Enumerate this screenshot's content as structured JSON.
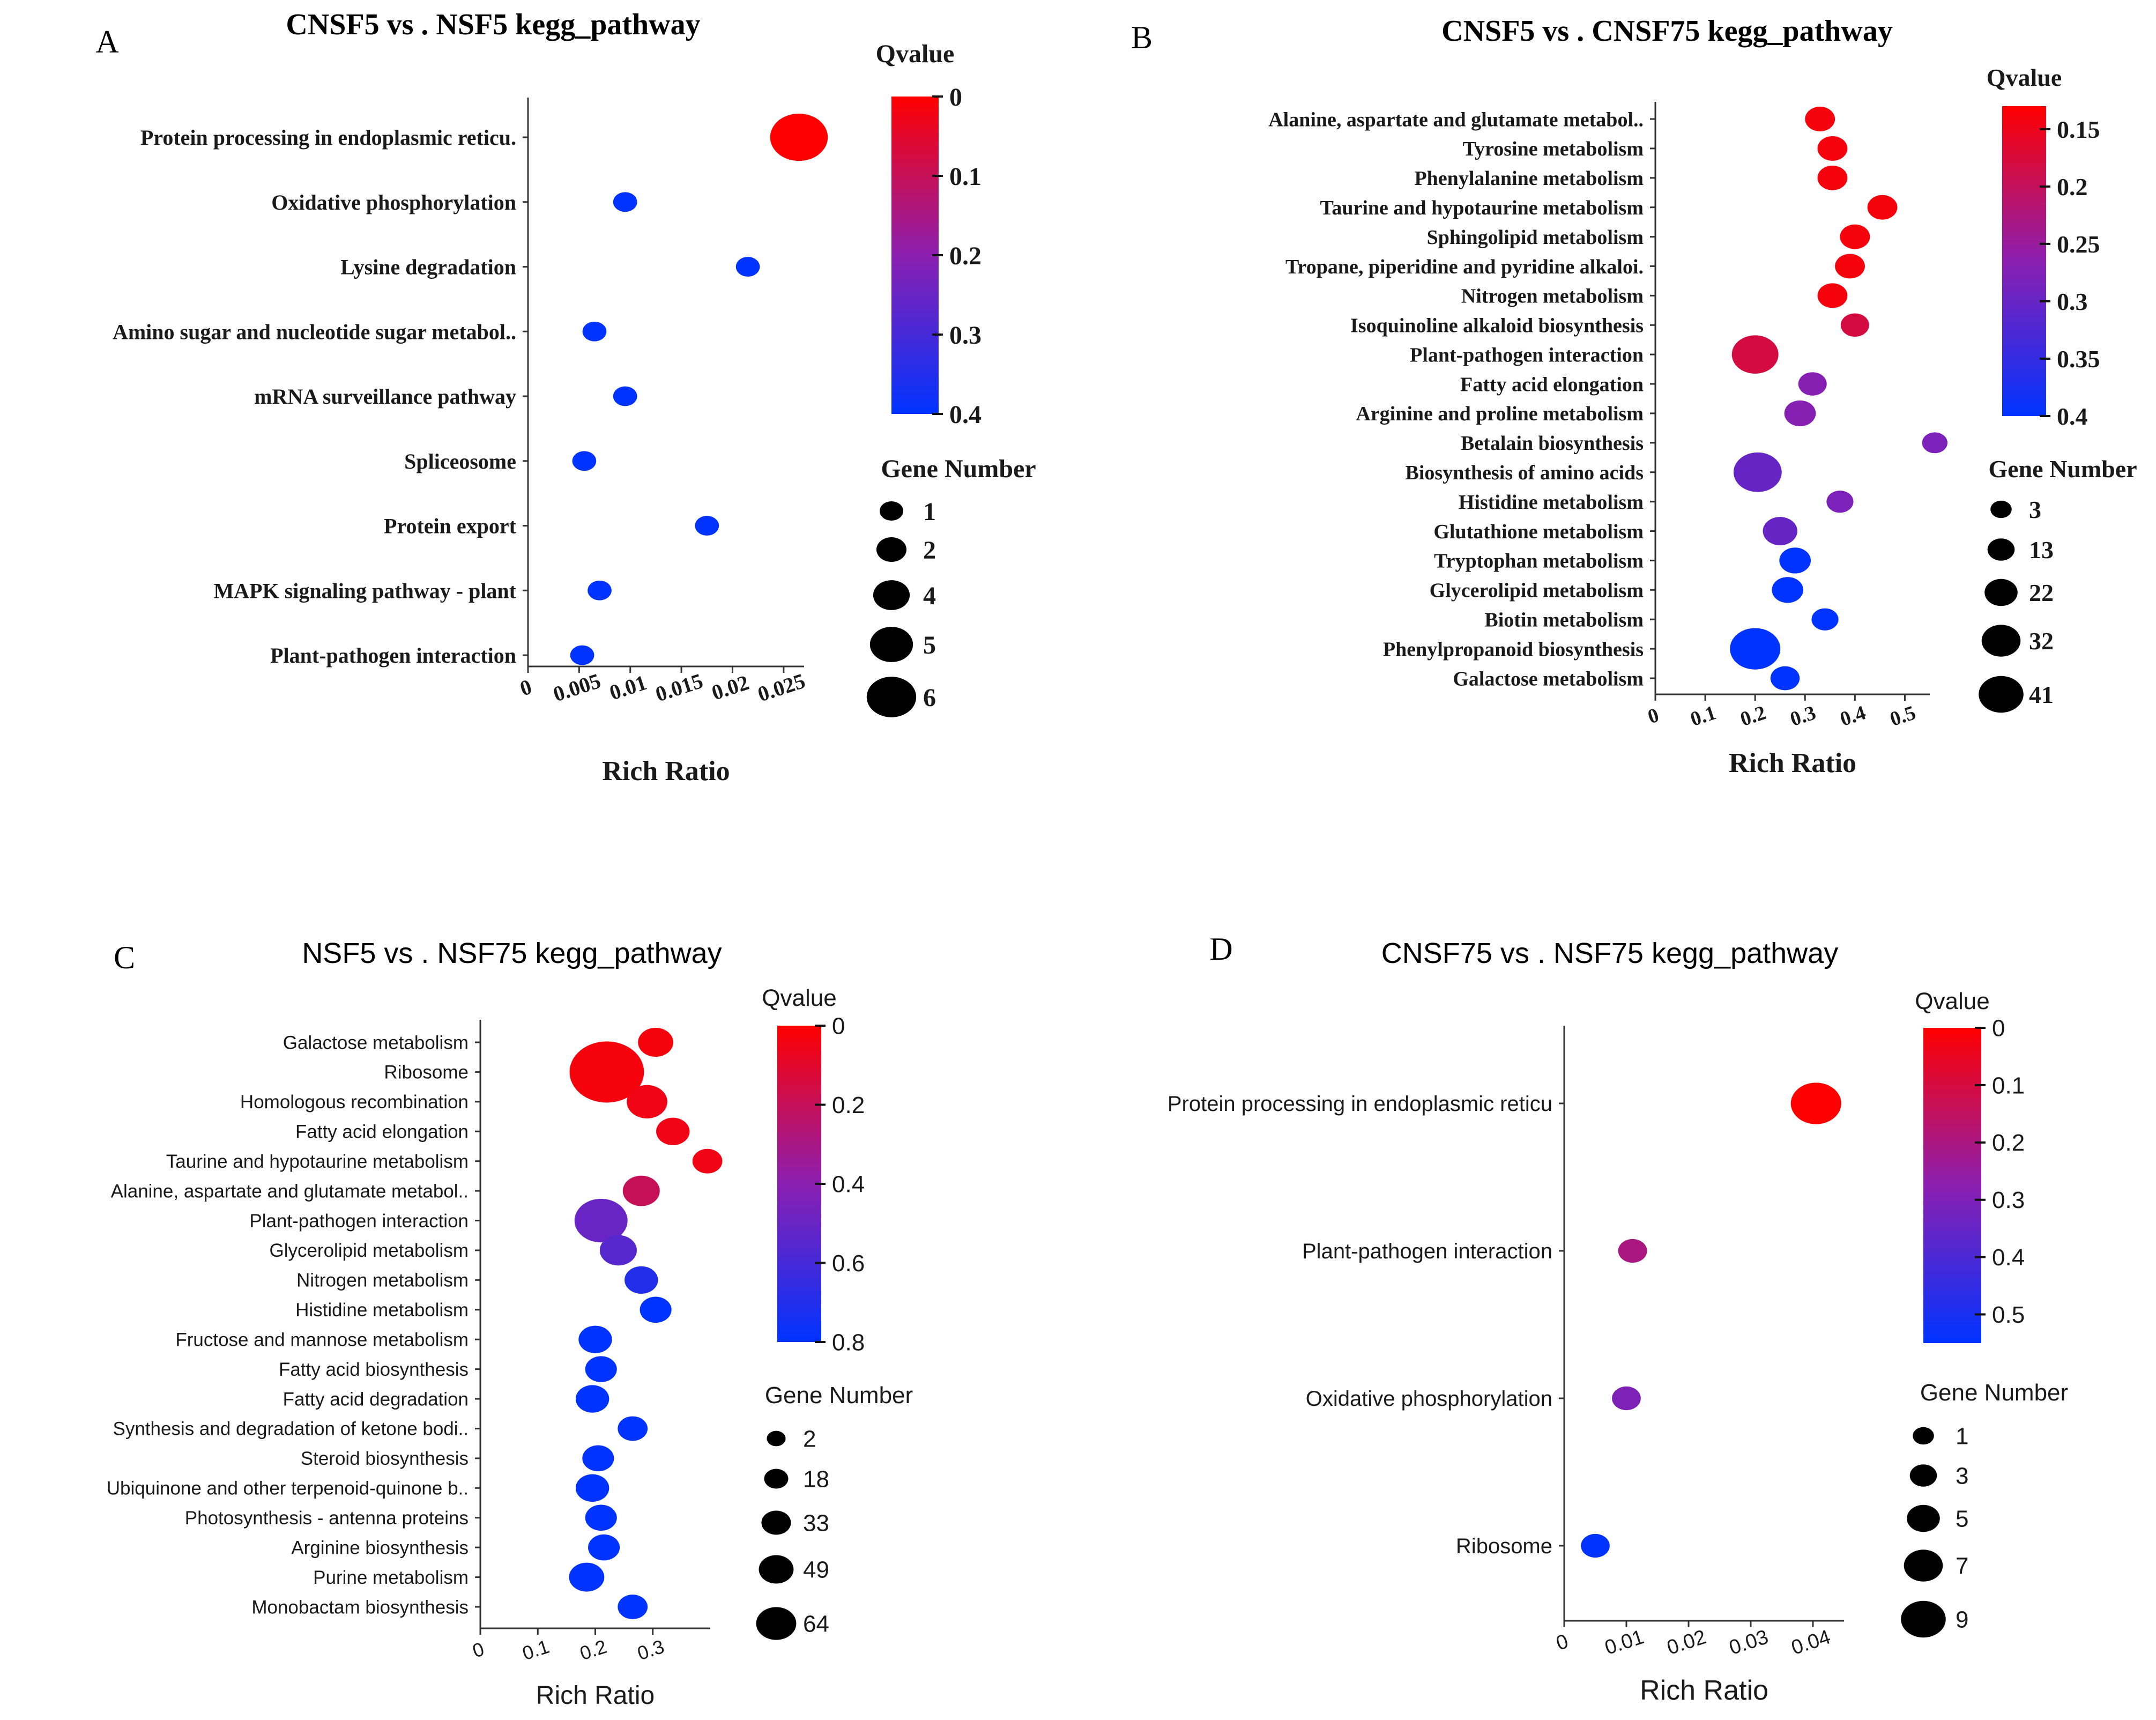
{
  "chart_data": [
    {
      "type": "scatter",
      "panel_letter": "A",
      "title": "CNSF5  vs . NSF5 kegg_pathway",
      "xlabel": "Rich Ratio",
      "ylabel": "",
      "xlim": [
        0,
        0.027
      ],
      "xticks": [
        "0",
        "0.005",
        "0.01",
        "0.015",
        "0.02",
        "0.025"
      ],
      "xtick_values": [
        0,
        0.005,
        0.01,
        0.015,
        0.02,
        0.025
      ],
      "categories": [
        "Protein processing in endoplasmic reticu.",
        "Oxidative phosphorylation",
        "Lysine degradation",
        "Amino sugar and nucleotide sugar metabol..",
        "mRNA surveillance pathway",
        "Spliceosome",
        "Protein export",
        "MAPK signaling pathway - plant",
        "Plant-pathogen interaction"
      ],
      "rich_ratio": [
        0.0265,
        0.0095,
        0.0215,
        0.0065,
        0.0095,
        0.0055,
        0.0175,
        0.007,
        0.0053
      ],
      "qvalue": [
        0.0,
        0.4,
        0.4,
        0.4,
        0.4,
        0.4,
        0.4,
        0.4,
        0.4
      ],
      "gene_number": [
        6,
        1,
        1,
        1,
        1,
        1,
        1,
        1,
        1
      ],
      "colorbar": {
        "title": "Qvalue",
        "ticks": [
          "0",
          "0.1",
          "0.2",
          "0.3",
          "0.4"
        ],
        "tick_values": [
          0,
          0.1,
          0.2,
          0.3,
          0.4
        ],
        "range": [
          0,
          0.4
        ],
        "low_color": "#ff0000",
        "mid_color": "#8b1fb0",
        "high_color": "#0033ff"
      },
      "size_legend": {
        "title": "Gene Number",
        "labels": [
          "1",
          "2",
          "4",
          "5",
          "6"
        ],
        "values": [
          1,
          2,
          4,
          5,
          6
        ]
      }
    },
    {
      "type": "scatter",
      "panel_letter": "B",
      "title": "CNSF5  vs . CNSF75 kegg_pathway",
      "xlabel": "Rich Ratio",
      "ylabel": "",
      "xlim": [
        0,
        0.55
      ],
      "xticks": [
        "0",
        "0.1",
        "0.2",
        "0.3",
        "0.4",
        "0.5"
      ],
      "xtick_values": [
        0,
        0.1,
        0.2,
        0.3,
        0.4,
        0.5
      ],
      "categories": [
        "Alanine, aspartate and glutamate metabol..",
        "Tyrosine metabolism",
        "Phenylalanine metabolism",
        "Taurine and hypotaurine metabolism",
        "Sphingolipid metabolism",
        "Tropane, piperidine and pyridine alkaloi.",
        "Nitrogen metabolism",
        "Isoquinoline alkaloid biosynthesis",
        "Plant-pathogen interaction",
        "Fatty acid elongation",
        "Arginine and proline metabolism",
        "Betalain biosynthesis",
        "Biosynthesis of amino acids",
        "Histidine metabolism",
        "Glutathione metabolism",
        "Tryptophan metabolism",
        "Glycerolipid metabolism",
        "Biotin metabolism",
        "Phenylpropanoid biosynthesis",
        "Galactose metabolism"
      ],
      "rich_ratio": [
        0.33,
        0.355,
        0.355,
        0.455,
        0.4,
        0.39,
        0.355,
        0.4,
        0.2,
        0.315,
        0.29,
        0.56,
        0.205,
        0.37,
        0.25,
        0.28,
        0.265,
        0.34,
        0.2,
        0.26
      ],
      "qvalue": [
        0.14,
        0.14,
        0.14,
        0.14,
        0.14,
        0.14,
        0.14,
        0.18,
        0.18,
        0.27,
        0.27,
        0.28,
        0.3,
        0.28,
        0.3,
        0.4,
        0.4,
        0.4,
        0.4,
        0.4
      ],
      "gene_number": [
        14,
        14,
        14,
        14,
        14,
        14,
        14,
        12,
        36,
        12,
        16,
        8,
        38,
        10,
        20,
        16,
        16,
        10,
        41,
        13
      ],
      "colorbar": {
        "title": "Qvalue",
        "ticks": [
          "0.15",
          "0.2",
          "0.25",
          "0.3",
          "0.35",
          "0.4"
        ],
        "tick_values": [
          0.15,
          0.2,
          0.25,
          0.3,
          0.35,
          0.4
        ],
        "range": [
          0.13,
          0.4
        ],
        "low_color": "#ff0000",
        "mid_color": "#8b1fb0",
        "high_color": "#0033ff"
      },
      "size_legend": {
        "title": "Gene Number",
        "labels": [
          "3",
          "13",
          "22",
          "32",
          "41"
        ],
        "values": [
          3,
          13,
          22,
          32,
          41
        ]
      }
    },
    {
      "type": "scatter",
      "panel_letter": "C",
      "title": "NSF5  vs . NSF75 kegg_pathway",
      "xlabel": "Rich Ratio",
      "ylabel": "",
      "xlim": [
        0,
        0.4
      ],
      "xticks": [
        "0",
        "0.1",
        "0.2",
        "0.3"
      ],
      "xtick_values": [
        0,
        0.1,
        0.2,
        0.3
      ],
      "categories": [
        "Galactose metabolism",
        "Ribosome",
        "Homologous recombination",
        "Fatty acid elongation",
        "Taurine and hypotaurine metabolism",
        "Alanine, aspartate and glutamate metabol..",
        "Plant-pathogen interaction",
        "Glycerolipid metabolism",
        "Nitrogen metabolism",
        "Histidine metabolism",
        "Fructose and mannose metabolism",
        "Fatty acid biosynthesis",
        "Fatty acid degradation",
        "Synthesis and degradation of ketone bodi..",
        "Steroid biosynthesis",
        "Ubiquinone and other terpenoid-quinone b..",
        "Photosynthesis - antenna proteins",
        "Arginine biosynthesis",
        "Purine metabolism",
        "Monobactam biosynthesis"
      ],
      "rich_ratio": [
        0.305,
        0.22,
        0.29,
        0.335,
        0.395,
        0.28,
        0.21,
        0.24,
        0.28,
        0.305,
        0.2,
        0.21,
        0.195,
        0.265,
        0.205,
        0.195,
        0.21,
        0.215,
        0.185,
        0.265
      ],
      "qvalue": [
        0.03,
        0.03,
        0.05,
        0.05,
        0.05,
        0.2,
        0.5,
        0.55,
        0.7,
        0.8,
        0.8,
        0.8,
        0.8,
        0.8,
        0.8,
        0.8,
        0.8,
        0.8,
        0.8,
        0.8
      ],
      "gene_number": [
        20,
        64,
        26,
        18,
        14,
        22,
        40,
        22,
        18,
        16,
        18,
        16,
        18,
        14,
        16,
        18,
        16,
        16,
        20,
        14
      ],
      "colorbar": {
        "title": "Qvalue",
        "ticks": [
          "0",
          "0.2",
          "0.4",
          "0.6",
          "0.8"
        ],
        "tick_values": [
          0,
          0.2,
          0.4,
          0.6,
          0.8
        ],
        "range": [
          0,
          0.8
        ],
        "low_color": "#ff0000",
        "mid_color": "#8b1fb0",
        "high_color": "#0033ff"
      },
      "size_legend": {
        "title": "Gene Number",
        "labels": [
          "2",
          "18",
          "33",
          "49",
          "64"
        ],
        "values": [
          2,
          18,
          33,
          49,
          64
        ]
      }
    },
    {
      "type": "scatter",
      "panel_letter": "D",
      "title": "CNSF75  vs . NSF75 kegg_pathway",
      "xlabel": "Rich Ratio",
      "ylabel": "",
      "xlim": [
        0,
        0.045
      ],
      "xticks": [
        "0",
        "0.01",
        "0.02",
        "0.03",
        "0.04"
      ],
      "xtick_values": [
        0,
        0.01,
        0.02,
        0.03,
        0.04
      ],
      "categories": [
        "Protein processing in endoplasmic reticu",
        "Plant-pathogen interaction",
        "Oxidative phosphorylation",
        "Ribosome"
      ],
      "rich_ratio": [
        0.0405,
        0.011,
        0.01,
        0.005
      ],
      "qvalue": [
        0.0,
        0.2,
        0.3,
        0.55
      ],
      "gene_number": [
        9,
        3,
        3,
        3
      ],
      "colorbar": {
        "title": "Qvalue",
        "ticks": [
          "0",
          "0.1",
          "0.2",
          "0.3",
          "0.4",
          "0.5"
        ],
        "tick_values": [
          0,
          0.1,
          0.2,
          0.3,
          0.4,
          0.5
        ],
        "range": [
          0,
          0.55
        ],
        "low_color": "#ff0000",
        "mid_color": "#8b1fb0",
        "high_color": "#0033ff"
      },
      "size_legend": {
        "title": "Gene Number",
        "labels": [
          "1",
          "3",
          "5",
          "7",
          "9"
        ],
        "values": [
          1,
          3,
          5,
          7,
          9
        ]
      }
    }
  ]
}
